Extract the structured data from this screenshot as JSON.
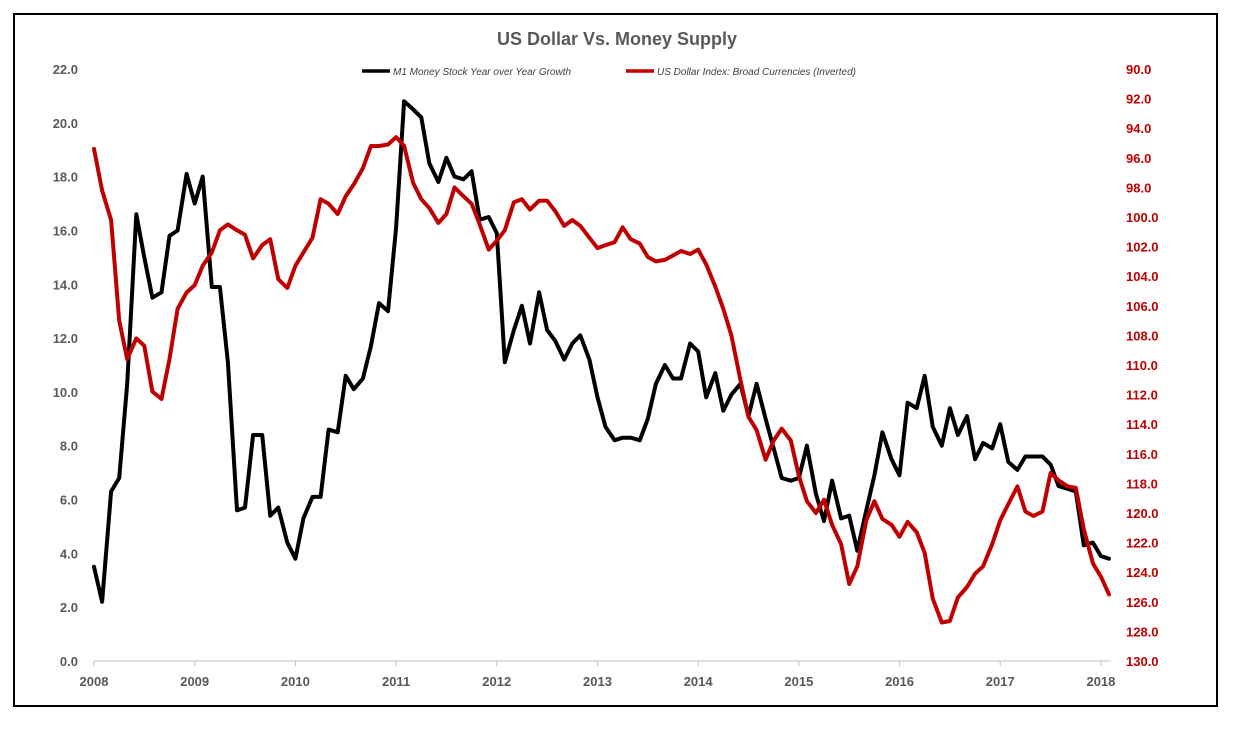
{
  "chart_data": {
    "type": "line",
    "title": "US Dollar Vs. Money Supply",
    "grid": false,
    "legend_placement": "top-center",
    "x_ticks": [
      "2008",
      "2009",
      "2010",
      "2011",
      "2012",
      "2013",
      "2014",
      "2015",
      "2016",
      "2017",
      "2018"
    ],
    "x_range": [
      2008.0,
      2018.1
    ],
    "y_left": {
      "range": [
        0,
        22
      ],
      "ticks": [
        "0.0",
        "2.0",
        "4.0",
        "6.0",
        "8.0",
        "10.0",
        "12.0",
        "14.0",
        "16.0",
        "18.0",
        "20.0",
        "22.0"
      ]
    },
    "y_right": {
      "range": [
        90,
        130
      ],
      "inverted": true,
      "ticks": [
        "90.0",
        "92.0",
        "94.0",
        "96.0",
        "98.0",
        "100.0",
        "102.0",
        "104.0",
        "106.0",
        "108.0",
        "110.0",
        "112.0",
        "114.0",
        "116.0",
        "118.0",
        "120.0",
        "122.0",
        "124.0",
        "126.0",
        "128.0",
        "130.0"
      ]
    },
    "series": [
      {
        "name": "M1 Money Stock Year over Year Growth",
        "axis": "left",
        "color": "#000000",
        "x": [
          2008.0,
          2008.08,
          2008.17,
          2008.25,
          2008.33,
          2008.42,
          2008.5,
          2008.58,
          2008.67,
          2008.75,
          2008.83,
          2008.92,
          2009.0,
          2009.08,
          2009.17,
          2009.25,
          2009.33,
          2009.42,
          2009.5,
          2009.58,
          2009.67,
          2009.75,
          2009.83,
          2009.92,
          2010.0,
          2010.08,
          2010.17,
          2010.25,
          2010.33,
          2010.42,
          2010.5,
          2010.58,
          2010.67,
          2010.75,
          2010.83,
          2010.92,
          2011.0,
          2011.08,
          2011.17,
          2011.25,
          2011.33,
          2011.42,
          2011.5,
          2011.58,
          2011.67,
          2011.75,
          2011.83,
          2011.92,
          2012.0,
          2012.08,
          2012.17,
          2012.25,
          2012.33,
          2012.42,
          2012.5,
          2012.58,
          2012.67,
          2012.75,
          2012.83,
          2012.92,
          2013.0,
          2013.08,
          2013.17,
          2013.25,
          2013.33,
          2013.42,
          2013.5,
          2013.58,
          2013.67,
          2013.75,
          2013.83,
          2013.92,
          2014.0,
          2014.08,
          2014.17,
          2014.25,
          2014.33,
          2014.42,
          2014.5,
          2014.58,
          2014.67,
          2014.75,
          2014.83,
          2014.92,
          2015.0,
          2015.08,
          2015.17,
          2015.25,
          2015.33,
          2015.42,
          2015.5,
          2015.58,
          2015.67,
          2015.75,
          2015.83,
          2015.92,
          2016.0,
          2016.08,
          2016.17,
          2016.25,
          2016.33,
          2016.42,
          2016.5,
          2016.58,
          2016.67,
          2016.75,
          2016.83,
          2016.92,
          2017.0,
          2017.08,
          2017.17,
          2017.25,
          2017.33,
          2017.42,
          2017.5,
          2017.58,
          2017.67,
          2017.75,
          2017.83,
          2017.92,
          2018.0,
          2018.08
        ],
        "values": [
          3.5,
          2.2,
          6.3,
          6.8,
          10.3,
          16.6,
          15.0,
          13.5,
          13.7,
          15.8,
          16.0,
          18.1,
          17.0,
          18.0,
          13.9,
          13.9,
          11.1,
          5.6,
          5.7,
          8.4,
          8.4,
          5.4,
          5.7,
          4.4,
          3.8,
          5.3,
          6.1,
          6.1,
          8.6,
          8.5,
          10.6,
          10.1,
          10.5,
          11.7,
          13.3,
          13.0,
          16.1,
          20.8,
          20.5,
          20.2,
          18.5,
          17.8,
          18.7,
          18.0,
          17.9,
          18.2,
          16.4,
          16.5,
          15.9,
          11.1,
          12.3,
          13.2,
          11.8,
          13.7,
          12.3,
          11.9,
          11.2,
          11.8,
          12.1,
          11.2,
          9.8,
          8.7,
          8.2,
          8.3,
          8.3,
          8.2,
          9.0,
          10.3,
          11.0,
          10.5,
          10.5,
          11.8,
          11.5,
          9.8,
          10.7,
          9.3,
          9.9,
          10.3,
          9.1,
          10.3,
          9.0,
          7.9,
          6.8,
          6.7,
          6.8,
          8.0,
          6.2,
          5.2,
          6.7,
          5.3,
          5.4,
          4.1,
          5.6,
          6.9,
          8.5,
          7.5,
          6.9,
          9.6,
          9.4,
          10.6,
          8.7,
          8.0,
          9.4,
          8.4,
          9.1,
          7.5,
          8.1,
          7.9,
          8.8,
          7.4,
          7.1,
          7.6,
          7.6,
          7.6,
          7.3,
          6.5,
          6.4,
          6.3,
          4.3,
          4.4,
          3.9,
          3.8
        ]
      },
      {
        "name": "US Dollar Index: Broad Currencies (Inverted)",
        "axis": "right",
        "color": "#c00000",
        "x": [
          2008.0,
          2008.08,
          2008.17,
          2008.25,
          2008.33,
          2008.42,
          2008.5,
          2008.58,
          2008.67,
          2008.75,
          2008.83,
          2008.92,
          2009.0,
          2009.08,
          2009.17,
          2009.25,
          2009.33,
          2009.42,
          2009.5,
          2009.58,
          2009.67,
          2009.75,
          2009.83,
          2009.92,
          2010.0,
          2010.08,
          2010.17,
          2010.25,
          2010.33,
          2010.42,
          2010.5,
          2010.58,
          2010.67,
          2010.75,
          2010.83,
          2010.92,
          2011.0,
          2011.08,
          2011.17,
          2011.25,
          2011.33,
          2011.42,
          2011.5,
          2011.58,
          2011.67,
          2011.75,
          2011.83,
          2011.92,
          2012.0,
          2012.08,
          2012.17,
          2012.25,
          2012.33,
          2012.42,
          2012.5,
          2012.58,
          2012.67,
          2012.75,
          2012.83,
          2012.92,
          2013.0,
          2013.08,
          2013.17,
          2013.25,
          2013.33,
          2013.42,
          2013.5,
          2013.58,
          2013.67,
          2013.75,
          2013.83,
          2013.92,
          2014.0,
          2014.08,
          2014.17,
          2014.25,
          2014.33,
          2014.42,
          2014.5,
          2014.58,
          2014.67,
          2014.75,
          2014.83,
          2014.92,
          2015.0,
          2015.08,
          2015.17,
          2015.25,
          2015.33,
          2015.42,
          2015.5,
          2015.58,
          2015.67,
          2015.75,
          2015.83,
          2015.92,
          2016.0,
          2016.08,
          2016.17,
          2016.25,
          2016.33,
          2016.42,
          2016.5,
          2016.58,
          2016.67,
          2016.75,
          2016.83,
          2016.92,
          2017.0,
          2017.08,
          2017.17,
          2017.25,
          2017.33,
          2017.42,
          2017.5,
          2017.58,
          2017.67,
          2017.75,
          2017.83,
          2017.92,
          2018.0,
          2018.08
        ],
        "values": [
          95.4,
          98.2,
          100.2,
          107.0,
          109.6,
          108.2,
          108.7,
          111.8,
          112.3,
          109.6,
          106.2,
          105.1,
          104.6,
          103.3,
          102.4,
          100.9,
          100.5,
          100.9,
          101.2,
          102.8,
          101.9,
          101.5,
          104.2,
          104.8,
          103.3,
          102.4,
          101.4,
          98.8,
          99.1,
          99.8,
          98.6,
          97.8,
          96.7,
          95.2,
          95.2,
          95.1,
          94.6,
          95.2,
          97.7,
          98.8,
          99.4,
          100.4,
          99.8,
          98.0,
          98.6,
          99.1,
          100.5,
          102.2,
          101.6,
          100.9,
          99.0,
          98.8,
          99.5,
          98.9,
          98.9,
          99.6,
          100.6,
          100.2,
          100.6,
          101.4,
          102.1,
          101.9,
          101.7,
          100.7,
          101.5,
          101.8,
          102.7,
          103.0,
          102.9,
          102.6,
          102.3,
          102.5,
          102.2,
          103.2,
          104.7,
          106.2,
          108.0,
          111.0,
          113.5,
          114.4,
          116.4,
          115.1,
          114.3,
          115.1,
          117.5,
          119.2,
          120.0,
          119.1,
          120.8,
          122.1,
          124.8,
          123.6,
          120.5,
          119.2,
          120.4,
          120.8,
          121.6,
          120.6,
          121.3,
          122.7,
          125.8,
          127.4,
          127.3,
          125.7,
          125.0,
          124.1,
          123.6,
          122.1,
          120.5,
          119.4,
          118.2,
          119.9,
          120.2,
          119.9,
          117.3,
          117.8,
          118.2,
          118.3,
          121.1,
          123.4,
          124.3,
          125.5
        ]
      }
    ]
  }
}
